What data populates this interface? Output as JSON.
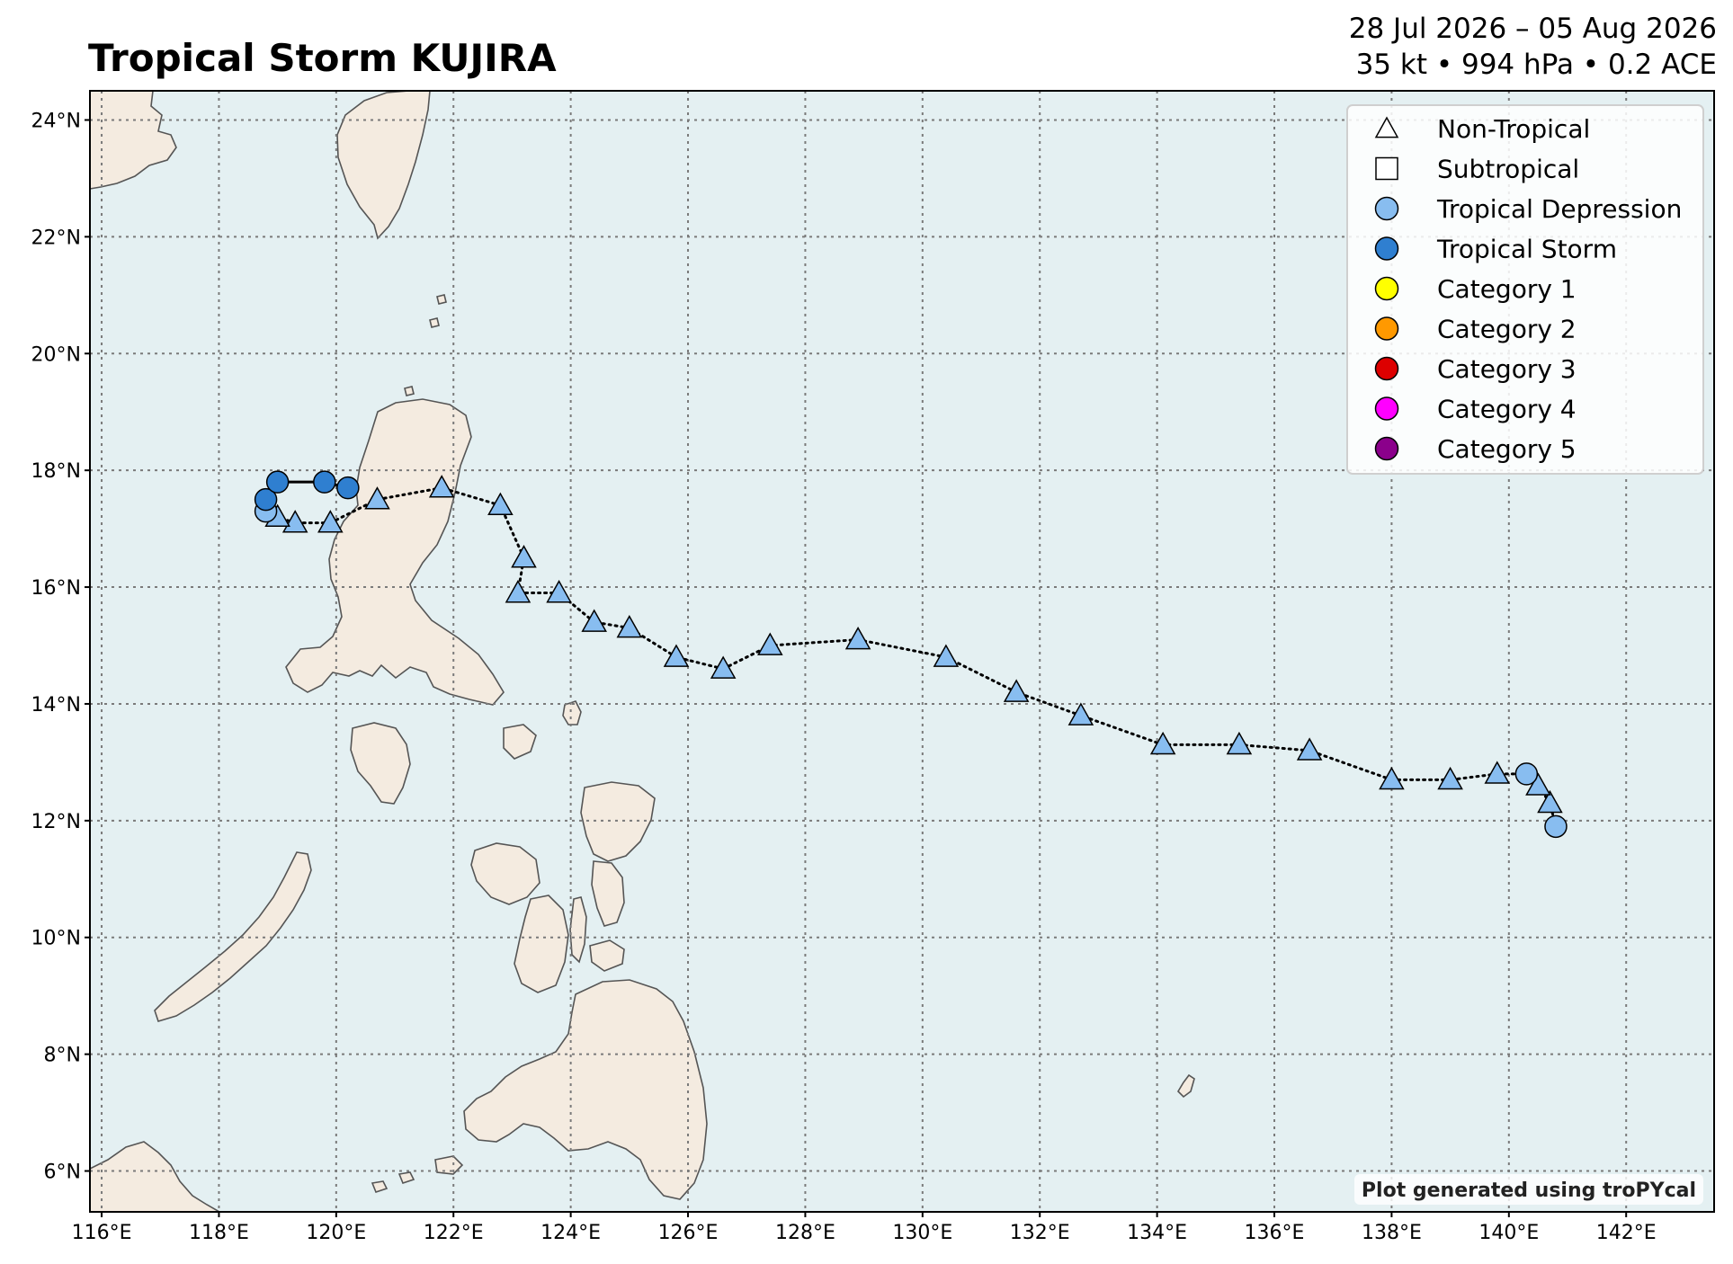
{
  "title": "Tropical Storm KUJIRA",
  "date_range": "28 Jul 2026 – 05 Aug 2026",
  "stats": "35 kt • 994 hPa • 0.2 ACE",
  "credit": "Plot generated using troPYcal",
  "colors": {
    "ocean": "#e4f0f2",
    "land": "#f4ebe0",
    "coast": "#555555",
    "grid": "#7a7a7a",
    "tropical_depression": "#88bdf0",
    "tropical_storm": "#2f7fd0",
    "category_1": "#ffff00",
    "category_2": "#ff9900",
    "category_3": "#dd0000",
    "category_4": "#ff00ff",
    "category_5": "#8b008b"
  },
  "legend": [
    {
      "label": "Non-Tropical",
      "marker": "triangle",
      "color": "#ffffff"
    },
    {
      "label": "Subtropical",
      "marker": "square",
      "color": "#ffffff"
    },
    {
      "label": "Tropical Depression",
      "marker": "circle",
      "color": "#88bdf0"
    },
    {
      "label": "Tropical Storm",
      "marker": "circle",
      "color": "#2f7fd0"
    },
    {
      "label": "Category 1",
      "marker": "circle",
      "color": "#ffff00"
    },
    {
      "label": "Category 2",
      "marker": "circle",
      "color": "#ff9900"
    },
    {
      "label": "Category 3",
      "marker": "circle",
      "color": "#dd0000"
    },
    {
      "label": "Category 4",
      "marker": "circle",
      "color": "#ff00ff"
    },
    {
      "label": "Category 5",
      "marker": "circle",
      "color": "#8b008b"
    }
  ],
  "chart_data": {
    "type": "scatter",
    "xlim": [
      115.8,
      143.5
    ],
    "ylim": [
      5.3,
      24.5
    ],
    "x_ticks": [
      116,
      118,
      120,
      122,
      124,
      126,
      128,
      130,
      132,
      134,
      136,
      138,
      140,
      142
    ],
    "x_tick_labels": [
      "116°E",
      "118°E",
      "120°E",
      "122°E",
      "124°E",
      "126°E",
      "128°E",
      "130°E",
      "132°E",
      "134°E",
      "136°E",
      "138°E",
      "140°E",
      "142°E"
    ],
    "y_ticks": [
      6,
      8,
      10,
      12,
      14,
      16,
      18,
      20,
      22,
      24
    ],
    "y_tick_labels": [
      "6°N",
      "8°N",
      "10°N",
      "12°N",
      "14°N",
      "16°N",
      "18°N",
      "20°N",
      "22°N",
      "24°N"
    ],
    "grid": true,
    "legend_position": "top-right",
    "track": [
      {
        "lon": 140.8,
        "lat": 11.9,
        "type": "Tropical Depression"
      },
      {
        "lon": 140.7,
        "lat": 12.3,
        "type": "Non-Tropical"
      },
      {
        "lon": 140.5,
        "lat": 12.6,
        "type": "Non-Tropical"
      },
      {
        "lon": 140.3,
        "lat": 12.8,
        "type": "Tropical Depression"
      },
      {
        "lon": 139.8,
        "lat": 12.8,
        "type": "Non-Tropical"
      },
      {
        "lon": 139.0,
        "lat": 12.7,
        "type": "Non-Tropical"
      },
      {
        "lon": 138.0,
        "lat": 12.7,
        "type": "Non-Tropical"
      },
      {
        "lon": 136.6,
        "lat": 13.2,
        "type": "Non-Tropical"
      },
      {
        "lon": 135.4,
        "lat": 13.3,
        "type": "Non-Tropical"
      },
      {
        "lon": 134.1,
        "lat": 13.3,
        "type": "Non-Tropical"
      },
      {
        "lon": 132.7,
        "lat": 13.8,
        "type": "Non-Tropical"
      },
      {
        "lon": 131.6,
        "lat": 14.2,
        "type": "Non-Tropical"
      },
      {
        "lon": 130.4,
        "lat": 14.8,
        "type": "Non-Tropical"
      },
      {
        "lon": 128.9,
        "lat": 15.1,
        "type": "Non-Tropical"
      },
      {
        "lon": 127.4,
        "lat": 15.0,
        "type": "Non-Tropical"
      },
      {
        "lon": 126.6,
        "lat": 14.6,
        "type": "Non-Tropical"
      },
      {
        "lon": 125.8,
        "lat": 14.8,
        "type": "Non-Tropical"
      },
      {
        "lon": 125.0,
        "lat": 15.3,
        "type": "Non-Tropical"
      },
      {
        "lon": 124.4,
        "lat": 15.4,
        "type": "Non-Tropical"
      },
      {
        "lon": 123.8,
        "lat": 15.9,
        "type": "Non-Tropical"
      },
      {
        "lon": 123.1,
        "lat": 15.9,
        "type": "Non-Tropical"
      },
      {
        "lon": 123.2,
        "lat": 16.5,
        "type": "Non-Tropical"
      },
      {
        "lon": 122.8,
        "lat": 17.4,
        "type": "Non-Tropical"
      },
      {
        "lon": 121.8,
        "lat": 17.7,
        "type": "Non-Tropical"
      },
      {
        "lon": 120.7,
        "lat": 17.5,
        "type": "Non-Tropical"
      },
      {
        "lon": 119.9,
        "lat": 17.1,
        "type": "Non-Tropical"
      },
      {
        "lon": 119.3,
        "lat": 17.1,
        "type": "Non-Tropical"
      },
      {
        "lon": 119.0,
        "lat": 17.2,
        "type": "Non-Tropical"
      },
      {
        "lon": 118.8,
        "lat": 17.3,
        "type": "Tropical Depression"
      },
      {
        "lon": 118.8,
        "lat": 17.5,
        "type": "Tropical Storm"
      },
      {
        "lon": 119.0,
        "lat": 17.8,
        "type": "Tropical Storm"
      },
      {
        "lon": 119.8,
        "lat": 17.8,
        "type": "Tropical Storm"
      },
      {
        "lon": 120.2,
        "lat": 17.7,
        "type": "Tropical Storm"
      }
    ]
  }
}
